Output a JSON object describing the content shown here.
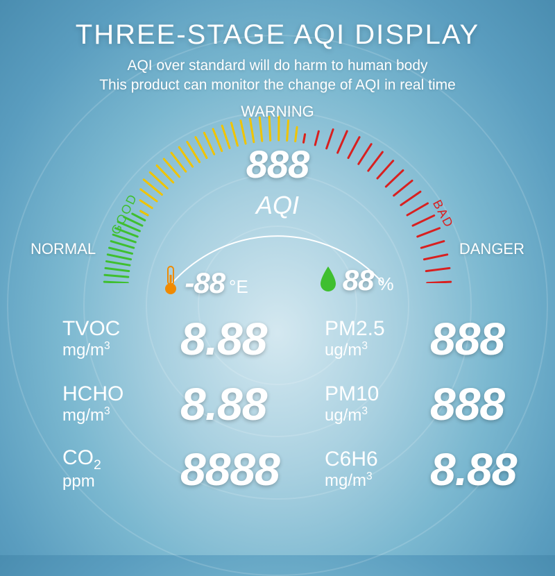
{
  "header": {
    "title": "THREE-STAGE AQI DISPLAY",
    "subtitle_line1": "AQI over standard will do harm to human body",
    "subtitle_line2": "This product can monitor the change of AQI in real time"
  },
  "gauge": {
    "type": "radial-gauge",
    "top_label": "WARNING",
    "left_label": "NORMAL",
    "right_label": "DANGER",
    "good_label": "GOOD",
    "bad_label": "BAD",
    "center_value": "888",
    "center_label": "AQI",
    "arc_color": "#ffffff",
    "segments": [
      {
        "name": "good",
        "color": "#3fbf2f",
        "start_deg": 200,
        "end_deg": 150
      },
      {
        "name": "warning",
        "color": "#f0c400",
        "start_deg": 150,
        "end_deg": 80
      },
      {
        "name": "bad",
        "color": "#d82020",
        "start_deg": 80,
        "end_deg": -20
      }
    ],
    "tick_count_per_segment": 22,
    "radius_outer": 250,
    "radius_inner": 216,
    "background": "radial tunnel light-blue"
  },
  "temp_humidity": {
    "temp_icon": "thermometer-icon",
    "temp_value": "-88",
    "temp_unit": "°E",
    "humidity_icon": "droplet-icon",
    "humidity_value": "88",
    "humidity_unit": "%",
    "temp_icon_color": "#f08a00",
    "humidity_icon_color": "#3fbf2f"
  },
  "readings": [
    {
      "name": "TVOC",
      "unit_html": "mg/m³",
      "value": "8.88",
      "pair_name": "PM2.5",
      "pair_unit_html": "ug/m³",
      "pair_value": "888"
    },
    {
      "name": "HCHO",
      "unit_html": "mg/m³",
      "value": "8.88",
      "pair_name": "PM10",
      "pair_unit_html": "ug/m³",
      "pair_value": "888"
    },
    {
      "name": "CO₂",
      "unit_html": "ppm",
      "value": "8888",
      "pair_name": "C6H6",
      "pair_unit_html": "mg/m³",
      "pair_value": "8.88"
    }
  ],
  "styling": {
    "text_color": "#ffffff",
    "title_fontsize": 40,
    "subtitle_fontsize": 21,
    "seg7_value_fontsize": 66,
    "label_fontsize": 30,
    "unit_fontsize": 24,
    "aqi_value_fontsize": 56,
    "aqi_label_fontsize": 36,
    "gauge_label_fontsize": 22,
    "gauge_rot_label_fontsize": 18,
    "background_gradient": [
      "#d4e8f0",
      "#a8d0e0",
      "#7bb8d0",
      "#5a9dbf",
      "#4a8db0"
    ]
  }
}
